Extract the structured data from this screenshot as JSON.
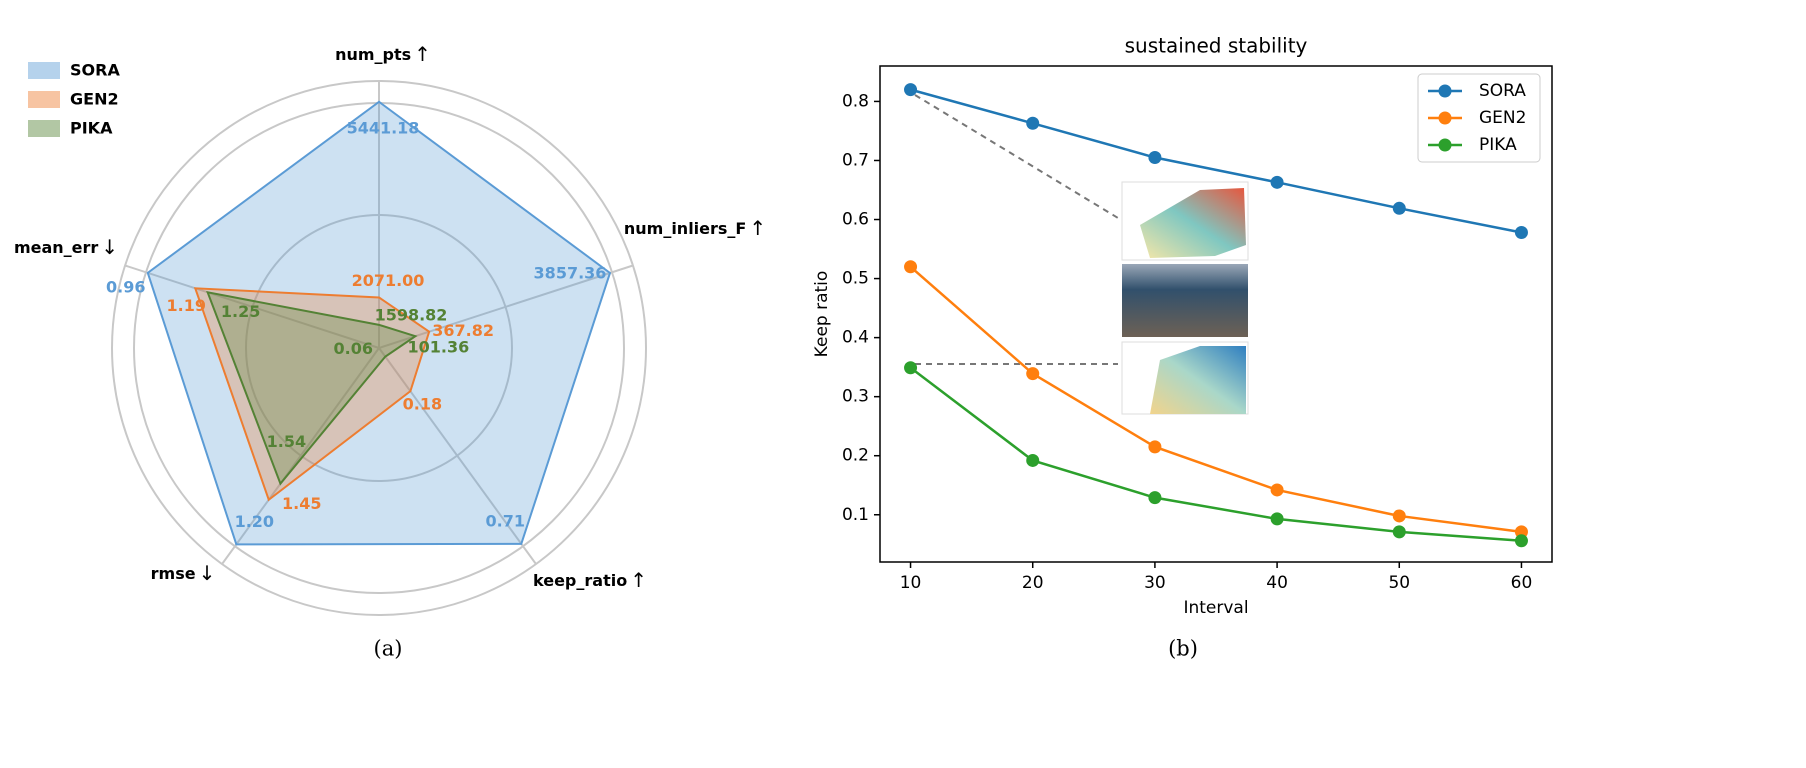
{
  "chart_data": [
    {
      "type": "radar",
      "axes": [
        "num_pts",
        "num_inliers_F",
        "keep_ratio",
        "rmse",
        "mean_err"
      ],
      "arrows": [
        "↑",
        "↑",
        "↑",
        "↓",
        "↓"
      ],
      "ranges": [
        [
          1200,
          5800
        ],
        [
          -600,
          4300
        ],
        [
          0.03,
          0.78
        ],
        [
          2.3,
          1.09
        ],
        [
          2.08,
          0.85
        ]
      ],
      "series": [
        {
          "name": "SORA",
          "color": "#5b9bd5",
          "values": [
            5441.18,
            3857.36,
            0.71,
            1.2,
            0.96
          ],
          "value_labels": [
            "5441.18",
            "3857.36",
            "0.71",
            "1.20",
            "0.96"
          ]
        },
        {
          "name": "GEN2",
          "color": "#ed7d31",
          "values": [
            2071.0,
            367.82,
            0.18,
            1.45,
            1.19
          ],
          "value_labels": [
            "2071.00",
            "367.82",
            "0.18",
            "1.45",
            "1.19"
          ]
        },
        {
          "name": "PIKA",
          "color": "#548235",
          "values": [
            1598.82,
            101.36,
            0.06,
            1.54,
            1.25
          ],
          "value_labels": [
            "1598.82",
            "101.36",
            "0.06",
            "1.54",
            "1.25"
          ]
        }
      ],
      "legend": "upper left",
      "caption": "(a)"
    },
    {
      "type": "line",
      "title": "sustained stability",
      "x_label": "Interval",
      "y_label": "Keep ratio",
      "x": [
        10,
        20,
        30,
        40,
        50,
        60
      ],
      "xlim": [
        7.5,
        62.5
      ],
      "xticks": [
        10,
        20,
        30,
        40,
        50,
        60
      ],
      "ylim": [
        0.02,
        0.86
      ],
      "yticks": [
        0.1,
        0.2,
        0.3,
        0.4,
        0.5,
        0.6,
        0.7,
        0.8
      ],
      "series": [
        {
          "name": "SORA",
          "color": "#1f77b4",
          "values": [
            0.82,
            0.763,
            0.705,
            0.663,
            0.619,
            0.578
          ]
        },
        {
          "name": "GEN2",
          "color": "#ff7f0e",
          "values": [
            0.52,
            0.339,
            0.215,
            0.142,
            0.098,
            0.071
          ]
        },
        {
          "name": "PIKA",
          "color": "#2ca02c",
          "values": [
            0.349,
            0.192,
            0.129,
            0.093,
            0.071,
            0.056
          ]
        }
      ],
      "legend": "upper right",
      "caption": "(b)"
    }
  ]
}
